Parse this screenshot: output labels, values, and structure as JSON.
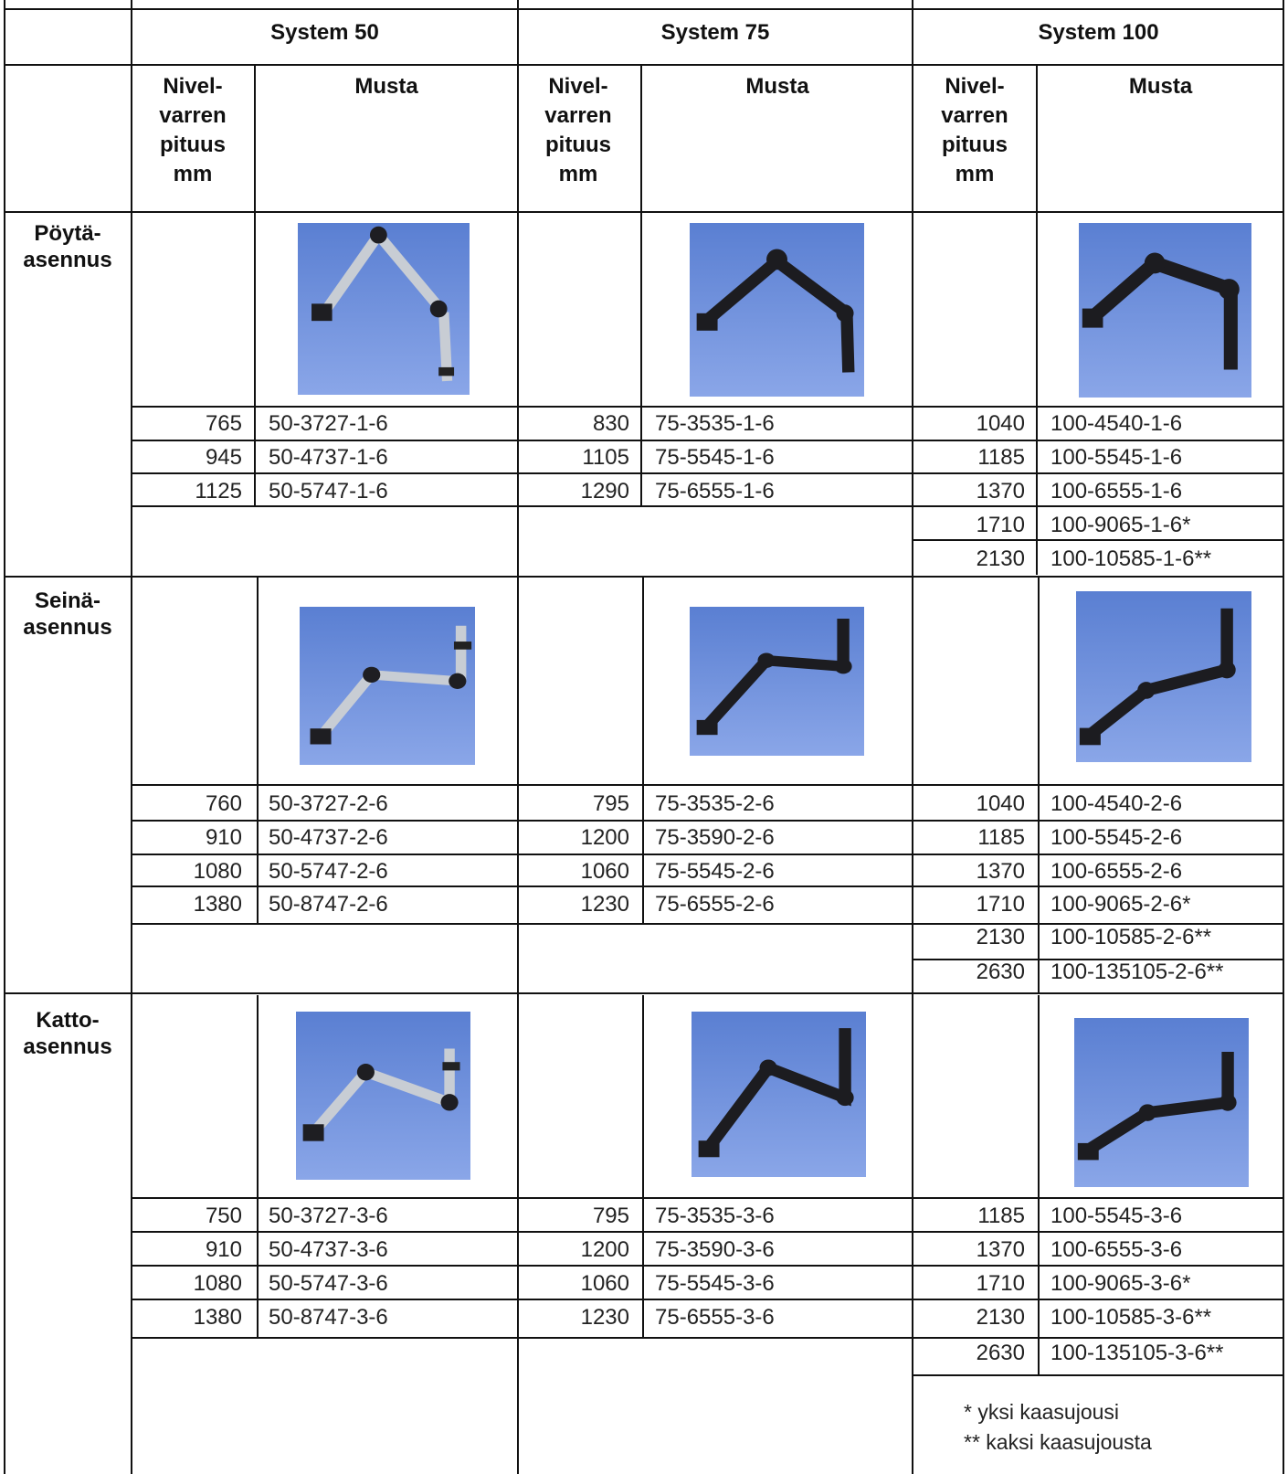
{
  "header": {
    "systems": [
      "System 50",
      "System 75",
      "System 100"
    ],
    "length_label": [
      "Nivel-",
      "varren",
      "pituus",
      "mm"
    ],
    "color_label": "Musta"
  },
  "sections": [
    {
      "label": [
        "Pöytä-",
        "asennus"
      ],
      "s50": [
        [
          "765",
          "50-3727-1-6"
        ],
        [
          "945",
          "50-4737-1-6"
        ],
        [
          "1125",
          "50-5747-1-6"
        ]
      ],
      "s75": [
        [
          "830",
          "75-3535-1-6"
        ],
        [
          "1105",
          "75-5545-1-6"
        ],
        [
          "1290",
          "75-6555-1-6"
        ]
      ],
      "s100": [
        [
          "1040",
          "100-4540-1-6"
        ],
        [
          "1185",
          "100-5545-1-6"
        ],
        [
          "1370",
          "100-6555-1-6"
        ],
        [
          "1710",
          "100-9065-1-6*"
        ],
        [
          "2130",
          "100-10585-1-6**"
        ]
      ]
    },
    {
      "label": [
        "Seinä-",
        "asennus"
      ],
      "s50": [
        [
          "760",
          "50-3727-2-6"
        ],
        [
          "910",
          "50-4737-2-6"
        ],
        [
          "1080",
          "50-5747-2-6"
        ],
        [
          "1380",
          "50-8747-2-6"
        ]
      ],
      "s75": [
        [
          "795",
          "75-3535-2-6"
        ],
        [
          "1200",
          "75-3590-2-6"
        ],
        [
          "1060",
          "75-5545-2-6"
        ],
        [
          "1230",
          "75-6555-2-6"
        ]
      ],
      "s100": [
        [
          "1040",
          "100-4540-2-6"
        ],
        [
          "1185",
          "100-5545-2-6"
        ],
        [
          "1370",
          "100-6555-2-6"
        ],
        [
          "1710",
          "100-9065-2-6*"
        ],
        [
          "2130",
          "100-10585-2-6**"
        ],
        [
          "2630",
          "100-135105-2-6**"
        ]
      ]
    },
    {
      "label": [
        "Katto-",
        "asennus"
      ],
      "s50": [
        [
          "750",
          "50-3727-3-6"
        ],
        [
          "910",
          "50-4737-3-6"
        ],
        [
          "1080",
          "50-5747-3-6"
        ],
        [
          "1380",
          "50-8747-3-6"
        ]
      ],
      "s75": [
        [
          "795",
          "75-3535-3-6"
        ],
        [
          "1200",
          "75-3590-3-6"
        ],
        [
          "1060",
          "75-5545-3-6"
        ],
        [
          "1230",
          "75-6555-3-6"
        ]
      ],
      "s100": [
        [
          "1185",
          "100-5545-3-6"
        ],
        [
          "1370",
          "100-6555-3-6"
        ],
        [
          "1710",
          "100-9065-3-6*"
        ],
        [
          "2130",
          "100-10585-3-6**"
        ],
        [
          "2630",
          "100-135105-3-6**"
        ]
      ]
    }
  ],
  "footnotes": [
    "* yksi kaasujousi",
    "** kaksi kaasujousta"
  ]
}
